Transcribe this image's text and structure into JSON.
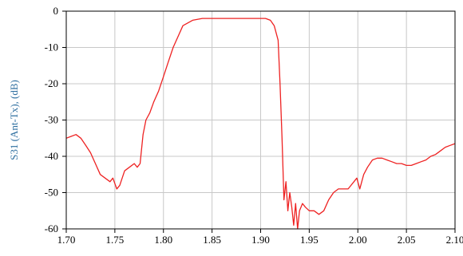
{
  "chart_data": {
    "type": "line",
    "title": "",
    "xlabel": "",
    "ylabel": "S31 (Ant-Tx), (dB)",
    "xlim": [
      1.7,
      2.1
    ],
    "ylim": [
      -60,
      0
    ],
    "grid": true,
    "x_ticks": [
      "1.70",
      "1.75",
      "1.80",
      "1.85",
      "1.90",
      "1.95",
      "2.00",
      "2.05",
      "2.10"
    ],
    "y_ticks": [
      "0",
      "-10",
      "-20",
      "-30",
      "-40",
      "-50",
      "-60"
    ],
    "colors": {
      "series": "#ee2222",
      "grid": "#c8c8c8",
      "frame": "#000000",
      "ylabel": "#2f6fa0"
    },
    "series": [
      {
        "x": [
          1.7,
          1.705,
          1.71,
          1.715,
          1.72,
          1.725,
          1.73,
          1.735,
          1.74,
          1.745,
          1.748,
          1.752,
          1.755,
          1.76,
          1.765,
          1.77,
          1.773,
          1.776,
          1.779,
          1.782,
          1.786,
          1.79,
          1.795,
          1.8,
          1.805,
          1.81,
          1.815,
          1.82,
          1.83,
          1.84,
          1.85,
          1.86,
          1.87,
          1.88,
          1.89,
          1.9,
          1.905,
          1.91,
          1.914,
          1.918,
          1.92,
          1.922,
          1.924,
          1.926,
          1.928,
          1.93,
          1.932,
          1.934,
          1.936,
          1.938,
          1.94,
          1.943,
          1.946,
          1.95,
          1.955,
          1.96,
          1.965,
          1.97,
          1.975,
          1.98,
          1.985,
          1.99,
          1.993,
          1.996,
          1.999,
          2.002,
          2.006,
          2.01,
          2.015,
          2.02,
          2.025,
          2.03,
          2.035,
          2.04,
          2.045,
          2.05,
          2.055,
          2.06,
          2.065,
          2.07,
          2.075,
          2.08,
          2.085,
          2.09,
          2.095,
          2.1
        ],
        "y": [
          -35,
          -34.5,
          -34,
          -35,
          -37,
          -39,
          -42,
          -45,
          -46,
          -47,
          -46,
          -49,
          -48,
          -44,
          -43,
          -42,
          -43,
          -42,
          -34,
          -30,
          -28,
          -25,
          -22,
          -18,
          -14,
          -10,
          -7,
          -4,
          -2.5,
          -2,
          -2,
          -2,
          -2,
          -2,
          -2,
          -2,
          -2,
          -2.5,
          -4,
          -8,
          -20,
          -35,
          -52,
          -47,
          -55,
          -50,
          -54,
          -59,
          -53,
          -60,
          -55,
          -53,
          -54,
          -55,
          -55,
          -56,
          -55,
          -52,
          -50,
          -49,
          -49,
          -49,
          -48,
          -47,
          -46,
          -49,
          -45,
          -43,
          -41,
          -40.5,
          -40.5,
          -41,
          -41.5,
          -42,
          -42,
          -42.5,
          -42.5,
          -42,
          -41.5,
          -41,
          -40,
          -39.5,
          -38.5,
          -37.5,
          -37,
          -36.5
        ]
      }
    ]
  }
}
